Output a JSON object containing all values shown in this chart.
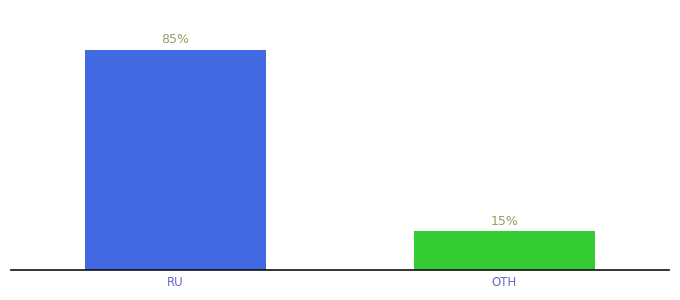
{
  "categories": [
    "RU",
    "OTH"
  ],
  "values": [
    85,
    15
  ],
  "bar_colors": [
    "#4169e1",
    "#33cc33"
  ],
  "label_texts": [
    "85%",
    "15%"
  ],
  "label_color": "#999966",
  "bar_width": 0.55,
  "x_positions": [
    0.5,
    1.5
  ],
  "xlim": [
    0.0,
    2.0
  ],
  "ylim": [
    0,
    100
  ],
  "background_color": "#ffffff",
  "axis_line_color": "#111111",
  "tick_label_color": "#6666cc",
  "tick_label_fontsize": 8.5,
  "value_label_fontsize": 9
}
